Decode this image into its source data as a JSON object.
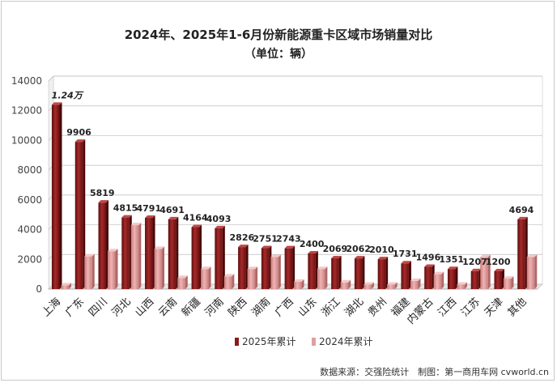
{
  "chart_data": {
    "type": "bar",
    "title": "2024年、2025年1-6月份新能源重卡区域市场销量对比",
    "subtitle": "（单位：辆）",
    "categories": [
      "上海",
      "广东",
      "四川",
      "河北",
      "山西",
      "云南",
      "新疆",
      "河南",
      "陕西",
      "湖南",
      "广西",
      "山东",
      "浙江",
      "湖北",
      "贵州",
      "福建",
      "内蒙古",
      "江西",
      "江苏",
      "天津",
      "其他"
    ],
    "series": [
      {
        "name": "2025年累计",
        "color": "#8b1a1a",
        "values": [
          12400,
          9906,
          5819,
          4815,
          4791,
          4691,
          4164,
          4093,
          2826,
          2751,
          2743,
          2400,
          2069,
          2062,
          2010,
          1731,
          1496,
          1351,
          1207,
          1200,
          4694
        ]
      },
      {
        "name": "2024年累计",
        "color": "#e0a0a0",
        "values": [
          250,
          2200,
          2550,
          4300,
          2700,
          750,
          1350,
          850,
          1350,
          2150,
          500,
          1350,
          450,
          300,
          300,
          550,
          1000,
          300,
          2150,
          700,
          2150
        ]
      }
    ],
    "data_labels": [
      "1.24万",
      "9906",
      "5819",
      "4815",
      "4791",
      "4691",
      "4164",
      "4093",
      "2826",
      "2751",
      "2743",
      "2400",
      "2069",
      "2062",
      "2010",
      "1731",
      "1496",
      "1351",
      "1207",
      "1200",
      "4694"
    ],
    "yticks": [
      "0",
      "2000",
      "4000",
      "6000",
      "8000",
      "10000",
      "12000",
      "14000"
    ],
    "ylim": [
      0,
      14000
    ],
    "legend_position": "bottom"
  },
  "source_text": "数据来源：交强险统计　制图：第一商用车网 cvworld.cn"
}
